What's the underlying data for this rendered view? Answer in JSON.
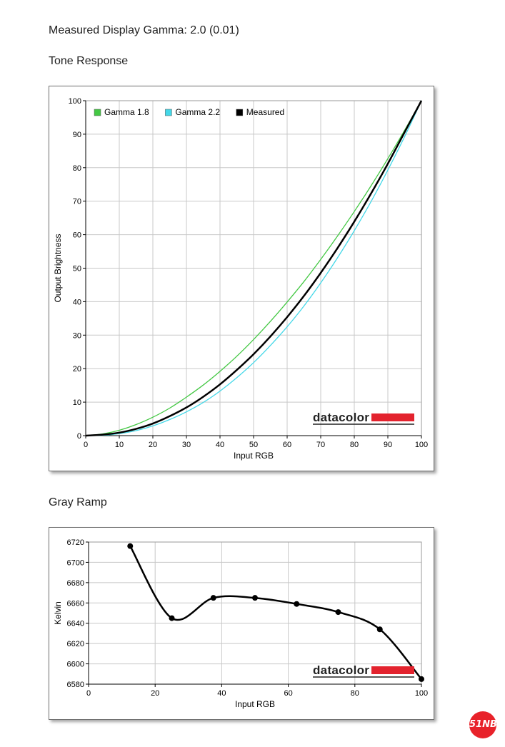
{
  "header": {
    "measured_gamma": "Measured Display Gamma: 2.0 (0.01)",
    "tone_title": "Tone Response",
    "gray_title": "Gray Ramp"
  },
  "brand": {
    "logo_text": "datacolor",
    "logo_bar_color": "#e3232e",
    "watermark_text": "51NB",
    "watermark_color": "#e8222a"
  },
  "chart_data": [
    {
      "type": "line",
      "title": "",
      "xlabel": "Input RGB",
      "ylabel": "Output Brightness",
      "xlim": [
        0,
        100
      ],
      "ylim": [
        0,
        100
      ],
      "xticks": [
        0,
        10,
        20,
        30,
        40,
        50,
        60,
        70,
        80,
        90,
        100
      ],
      "yticks": [
        0,
        10,
        20,
        30,
        40,
        50,
        60,
        70,
        80,
        90,
        100
      ],
      "grid": true,
      "legend": "top-left",
      "x": [
        0,
        5,
        10,
        15,
        20,
        25,
        30,
        35,
        40,
        45,
        50,
        55,
        60,
        65,
        70,
        75,
        80,
        85,
        90,
        95,
        100
      ],
      "series": [
        {
          "name": "Gamma 1.8",
          "color": "#44c844",
          "values": [
            0,
            0.5,
            1.6,
            3.3,
            5.5,
            8.2,
            11.5,
            15.1,
            19.2,
            23.7,
            28.7,
            34.1,
            39.9,
            46.0,
            52.6,
            59.6,
            66.9,
            74.6,
            82.7,
            91.2,
            100
          ]
        },
        {
          "name": "Gamma 2.2",
          "color": "#44d8e8",
          "values": [
            0,
            0.1,
            0.6,
            1.5,
            2.9,
            4.8,
            7.1,
            9.9,
            13.3,
            17.3,
            21.8,
            26.9,
            32.5,
            38.7,
            45.6,
            53.1,
            61.2,
            69.9,
            79.3,
            89.3,
            100
          ]
        },
        {
          "name": "Measured",
          "color": "#000000",
          "values": [
            0,
            0.3,
            0.9,
            2.0,
            3.6,
            5.8,
            8.4,
            11.6,
            15.3,
            19.6,
            24.3,
            29.6,
            35.4,
            41.7,
            48.6,
            56.0,
            63.9,
            72.3,
            81.2,
            90.6,
            100
          ]
        }
      ]
    },
    {
      "type": "line",
      "title": "",
      "xlabel": "Input RGB",
      "ylabel": "Kelvin",
      "xlim": [
        0,
        100
      ],
      "ylim": [
        6580,
        6720
      ],
      "xticks": [
        0,
        20,
        40,
        60,
        80,
        100
      ],
      "yticks": [
        6580,
        6600,
        6620,
        6640,
        6660,
        6680,
        6700,
        6720
      ],
      "grid": true,
      "legend": "none",
      "x": [
        12.5,
        25,
        37.5,
        50,
        62.5,
        75,
        87.5,
        100
      ],
      "series": [
        {
          "name": "",
          "color": "#000000",
          "values": [
            6716,
            6645,
            6665,
            6665,
            6659,
            6651,
            6634,
            6585
          ]
        }
      ]
    }
  ]
}
